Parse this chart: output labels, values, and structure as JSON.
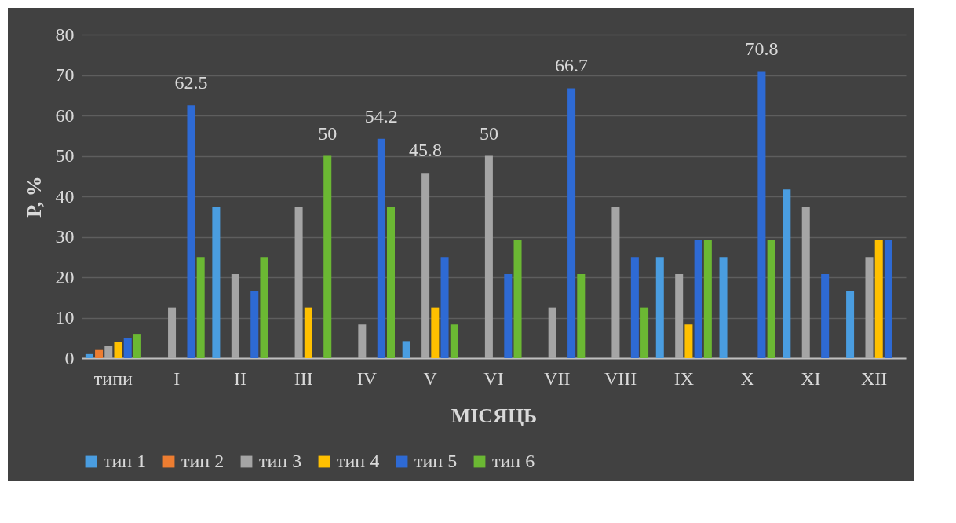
{
  "chart_data": {
    "type": "bar",
    "xlabel": "МІСЯЦЬ",
    "ylabel": "P, %",
    "categories": [
      "типи",
      "I",
      "II",
      "III",
      "IV",
      "V",
      "VI",
      "VII",
      "VIII",
      "IX",
      "X",
      "XI",
      "XII"
    ],
    "series": [
      {
        "name": "тип 1",
        "color": "#4a9de0",
        "values": [
          1,
          null,
          37.5,
          null,
          null,
          4.2,
          null,
          null,
          null,
          25,
          25,
          41.7,
          16.7
        ],
        "value_labels": [
          null,
          null,
          null,
          null,
          null,
          null,
          null,
          null,
          null,
          null,
          null,
          null,
          null
        ]
      },
      {
        "name": "тип 2",
        "color": "#ed7d31",
        "values": [
          2,
          null,
          null,
          null,
          null,
          null,
          null,
          null,
          null,
          null,
          null,
          null,
          null
        ],
        "value_labels": [
          null,
          null,
          null,
          null,
          null,
          null,
          null,
          null,
          null,
          null,
          null,
          null,
          null
        ]
      },
      {
        "name": "тип 3",
        "color": "#a5a5a5",
        "values": [
          3,
          12.5,
          20.8,
          37.5,
          8.3,
          45.8,
          50,
          12.5,
          37.5,
          20.8,
          null,
          37.5,
          25
        ],
        "value_labels": [
          null,
          null,
          null,
          null,
          null,
          "45.8",
          "50",
          null,
          null,
          null,
          null,
          null,
          null
        ]
      },
      {
        "name": "тип 4",
        "color": "#ffc000",
        "values": [
          4,
          null,
          null,
          12.5,
          null,
          12.5,
          null,
          null,
          null,
          8.3,
          null,
          null,
          29.2
        ],
        "value_labels": [
          null,
          null,
          null,
          null,
          null,
          null,
          null,
          null,
          null,
          null,
          null,
          null,
          null
        ]
      },
      {
        "name": "тип 5",
        "color": "#2e6ad4",
        "values": [
          5,
          62.5,
          16.7,
          null,
          54.2,
          25,
          20.8,
          66.7,
          25,
          29.2,
          70.8,
          20.8,
          29.2
        ],
        "value_labels": [
          null,
          "62.5",
          null,
          null,
          "54.2",
          null,
          null,
          "66.7",
          null,
          null,
          "70.8",
          null,
          null
        ]
      },
      {
        "name": "тип 6",
        "color": "#6bb833",
        "values": [
          6,
          25,
          25,
          50,
          37.5,
          8.3,
          29.2,
          20.8,
          12.5,
          29.2,
          29.2,
          null,
          null
        ],
        "value_labels": [
          null,
          null,
          null,
          "50",
          null,
          null,
          null,
          null,
          null,
          null,
          null,
          null,
          null
        ]
      }
    ],
    "ylim": [
      0,
      80
    ],
    "yticks": [
      0,
      10,
      20,
      30,
      40,
      50,
      60,
      70,
      80
    ],
    "grid": "y",
    "legend": "bottom"
  }
}
